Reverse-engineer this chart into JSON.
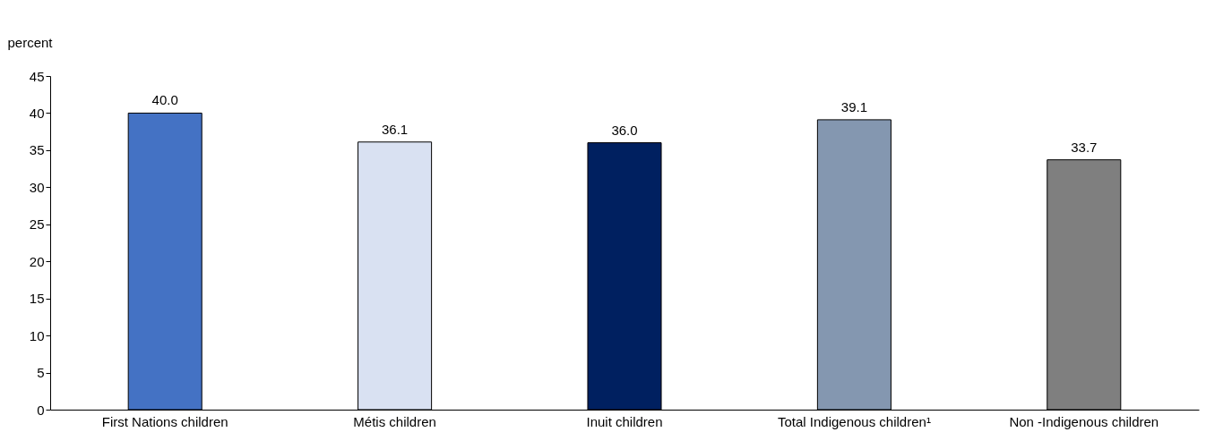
{
  "chart_data": {
    "type": "bar",
    "ylabel": "percent",
    "categories": [
      "First Nations children",
      "Métis children",
      "Inuit children",
      "Total Indigenous children¹",
      "Non -Indigenous children"
    ],
    "values": [
      40.0,
      36.1,
      36.0,
      39.1,
      33.7
    ],
    "value_labels": [
      "40.0",
      "36.1",
      "36.0",
      "39.1",
      "33.7"
    ],
    "colors": [
      "#4472c4",
      "#d9e1f2",
      "#002060",
      "#8497b0",
      "#7f7f7f"
    ],
    "ylim": [
      0,
      45
    ],
    "yticks": [
      0,
      5,
      10,
      15,
      20,
      25,
      30,
      35,
      40,
      45
    ],
    "grid": false
  }
}
